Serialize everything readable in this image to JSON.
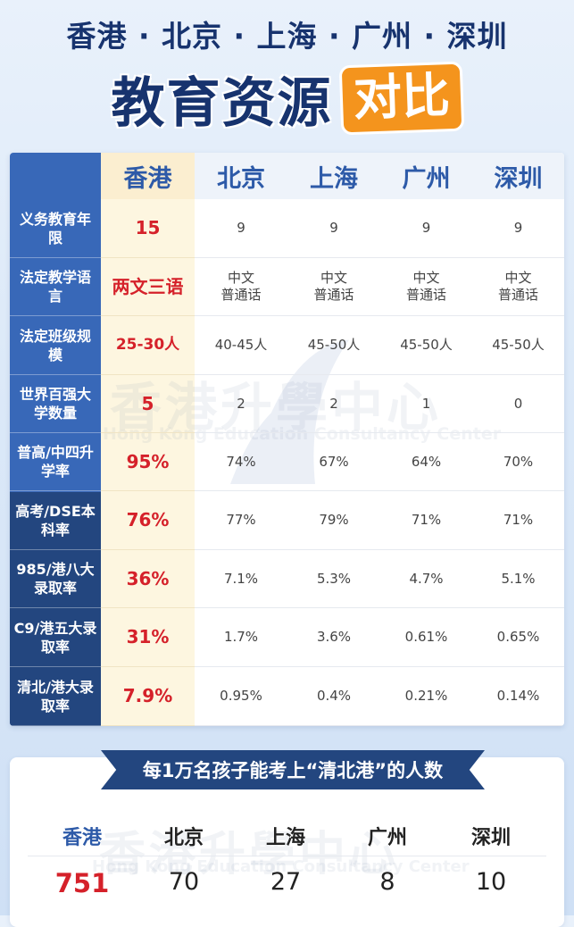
{
  "header": {
    "cities_line": "香港 · 北京 · 上海 · 广州 · 深圳",
    "title": "教育资源",
    "title_badge": "对比"
  },
  "table": {
    "columns": [
      "香港",
      "北京",
      "上海",
      "广州",
      "深圳"
    ],
    "rows": [
      {
        "label": "义务教育年限",
        "values": [
          "15",
          "9",
          "9",
          "9",
          "9"
        ]
      },
      {
        "label": "法定教学语言",
        "values": [
          "两文三语",
          "中文\n普通话",
          "中文\n普通话",
          "中文\n普通话",
          "中文\n普通话"
        ]
      },
      {
        "label": "法定班级规模",
        "values": [
          "25-30人",
          "40-45人",
          "45-50人",
          "45-50人",
          "45-50人"
        ]
      },
      {
        "label": "世界百强大学数量",
        "values": [
          "5",
          "2",
          "2",
          "1",
          "0"
        ]
      },
      {
        "label": "普高/中四升学率",
        "values": [
          "95%",
          "74%",
          "67%",
          "64%",
          "70%"
        ]
      },
      {
        "label": "高考/DSE本科率",
        "values": [
          "76%",
          "77%",
          "79%",
          "71%",
          "71%"
        ]
      },
      {
        "label": "985/港八大录取率",
        "values": [
          "36%",
          "7.1%",
          "5.3%",
          "4.7%",
          "5.1%"
        ]
      },
      {
        "label": "C9/港五大录取率",
        "values": [
          "31%",
          "1.7%",
          "3.6%",
          "0.61%",
          "0.65%"
        ]
      },
      {
        "label": "清北/港大录取率",
        "values": [
          "7.9%",
          "0.95%",
          "0.4%",
          "0.21%",
          "0.14%"
        ]
      }
    ]
  },
  "bottom": {
    "ribbon": "每1万名孩子能考上“清北港”的人数",
    "cities": [
      "香港",
      "北京",
      "上海",
      "广州",
      "深圳"
    ],
    "values": [
      "751",
      "70",
      "27",
      "8",
      "10"
    ]
  },
  "watermark": {
    "cn": "香港升學中心",
    "en": "Hong Kong Education Consultancy Center"
  },
  "colors": {
    "navy": "#17336e",
    "label_blue": "#3868b8",
    "label_dark": "#23467f",
    "orange": "#f4941d",
    "red": "#d5212a",
    "cream": "#fdf6e0"
  }
}
